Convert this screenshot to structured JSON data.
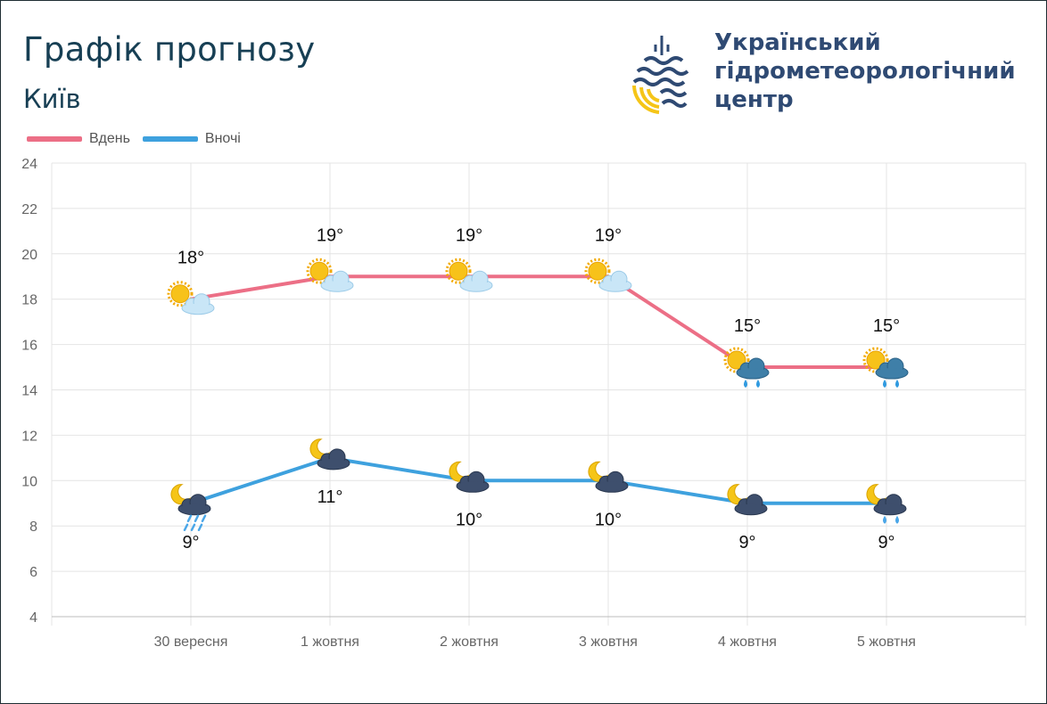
{
  "header": {
    "title": "Графік прогнозу",
    "city": "Київ",
    "org_line1": "Український",
    "org_line2": "гідрометеорологічний",
    "org_line3": "центр"
  },
  "colors": {
    "day": "#ec6f86",
    "night": "#3ea1de",
    "title": "#173f54",
    "org": "#2f4a73",
    "grid": "#e4e4e4",
    "logo_blue": "#2f4a73",
    "logo_yellow": "#f5c518"
  },
  "chart_data": {
    "type": "line",
    "categories": [
      "30 вересня",
      "1 жовтня",
      "2 жовтня",
      "3 жовтня",
      "4 жовтня",
      "5 жовтня"
    ],
    "ylim": [
      4,
      24
    ],
    "yticks": [
      "24",
      "22",
      "20",
      "18",
      "16",
      "14",
      "12",
      "10",
      "8",
      "6",
      "4"
    ],
    "grid": true,
    "legend_position": "top-left",
    "series": [
      {
        "name": "Вдень",
        "values": [
          18,
          19,
          19,
          19,
          15,
          15
        ],
        "labels": [
          "18°",
          "19°",
          "19°",
          "19°",
          "15°",
          "15°"
        ],
        "icons": [
          "sun-cloud-icon",
          "sun-cloud-icon",
          "sun-cloud-icon",
          "sun-cloud-icon",
          "sun-rain-cloud-icon",
          "sun-rain-cloud-icon"
        ]
      },
      {
        "name": "Вночі",
        "values": [
          9,
          11,
          10,
          10,
          9,
          9
        ],
        "labels": [
          "9°",
          "11°",
          "10°",
          "10°",
          "9°",
          "9°"
        ],
        "icons": [
          "moon-rain-cloud-icon",
          "moon-cloud-icon",
          "moon-cloud-icon",
          "moon-cloud-icon",
          "moon-cloud-icon",
          "moon-rain-cloud-icon"
        ]
      }
    ]
  }
}
